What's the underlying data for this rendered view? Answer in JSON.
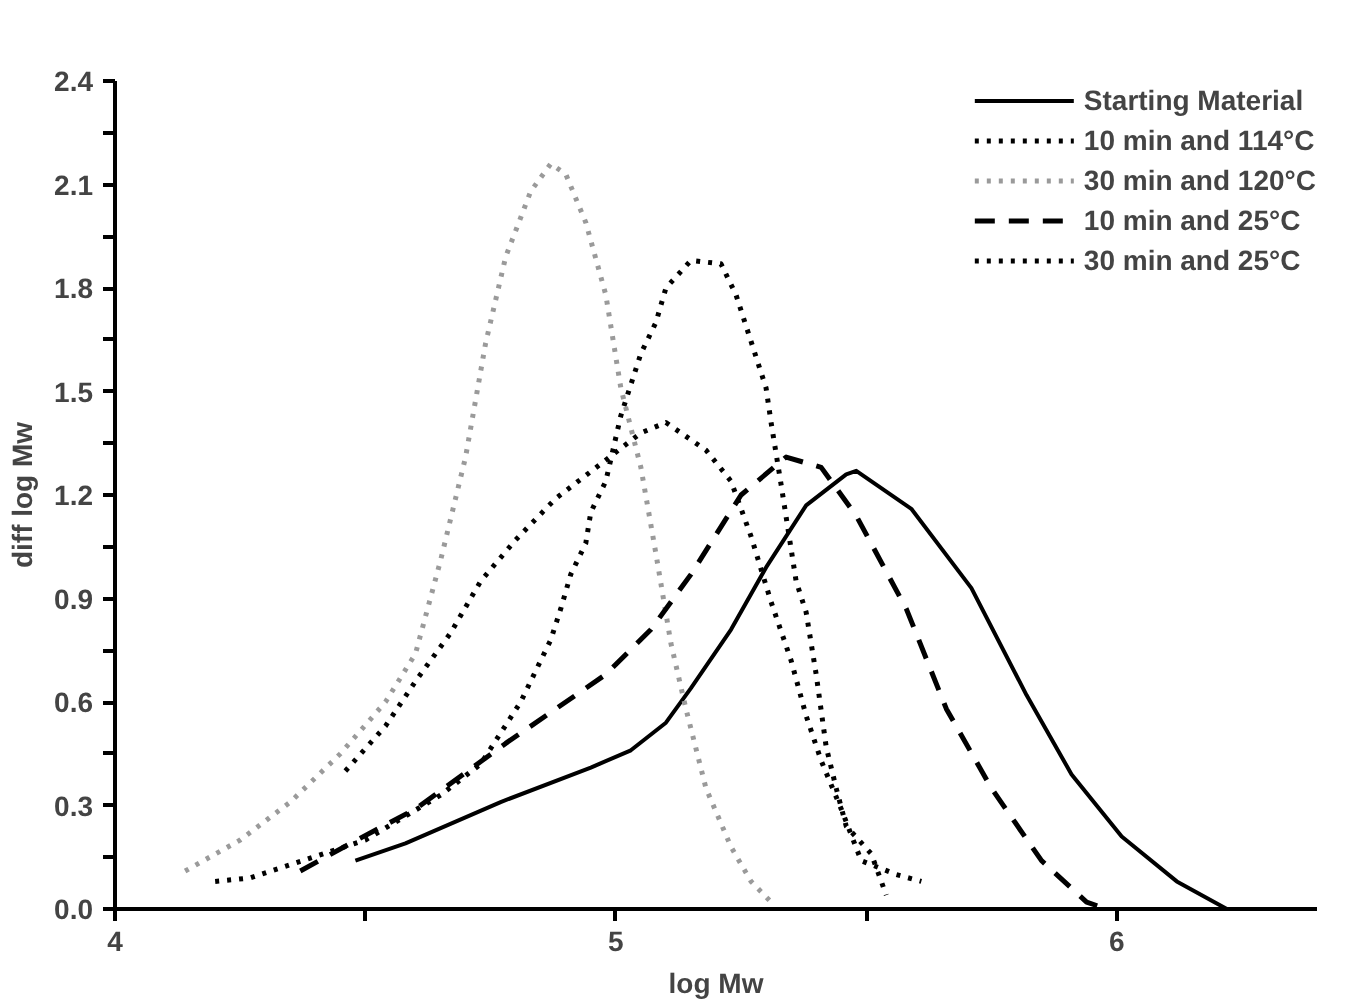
{
  "chart_data": {
    "type": "line",
    "xlabel": "log Mw",
    "ylabel": "diff log Mw",
    "xlim": [
      4,
      6.4
    ],
    "ylim": [
      0,
      2.4
    ],
    "xticks": [
      4,
      {
        "value": 4.5,
        "label": null
      },
      5,
      {
        "value": 5.5,
        "label": null
      },
      6
    ],
    "yticks": [
      {
        "value": 0,
        "label": "0.0"
      },
      {
        "value": 0.15,
        "label": null
      },
      0.3,
      {
        "value": 0.45,
        "label": null
      },
      0.6,
      {
        "value": 0.75,
        "label": null
      },
      0.9,
      {
        "value": 1.05,
        "label": null
      },
      1.2,
      {
        "value": 1.35,
        "label": null
      },
      1.5,
      {
        "value": 1.65,
        "label": null
      },
      1.8,
      {
        "value": 1.95,
        "label": null
      },
      2.1,
      {
        "value": 2.25,
        "label": null
      },
      2.4
    ],
    "grid": false,
    "legend": "top right",
    "series": [
      {
        "name": "Starting Material",
        "color": "#000000",
        "line_style": "solid",
        "x": [
          4.48,
          4.58,
          4.77,
          4.95,
          5.03,
          5.1,
          5.15,
          5.23,
          5.3,
          5.38,
          5.46,
          5.48,
          5.59,
          5.71,
          5.82,
          5.91,
          6.01,
          6.12,
          6.22
        ],
        "values": [
          0.14,
          0.19,
          0.31,
          0.41,
          0.46,
          0.54,
          0.64,
          0.81,
          0.99,
          1.17,
          1.26,
          1.27,
          1.16,
          0.93,
          0.62,
          0.39,
          0.21,
          0.08,
          0.0
        ]
      },
      {
        "name": "10 min and 114°C",
        "color": "#000000",
        "line_style": "dotted",
        "x": [
          4.2,
          4.27,
          4.5,
          4.65,
          4.73,
          4.81,
          4.84,
          4.87,
          4.89,
          4.91,
          4.94,
          4.95,
          4.98,
          5.01,
          5.03,
          5.05,
          5.08,
          5.1,
          5.15,
          5.21,
          5.24,
          5.26,
          5.28,
          5.3,
          5.31,
          5.33,
          5.36,
          5.38,
          5.4,
          5.42,
          5.44,
          5.46,
          5.51,
          5.54
        ],
        "values": [
          0.08,
          0.09,
          0.2,
          0.33,
          0.42,
          0.6,
          0.69,
          0.78,
          0.87,
          0.97,
          1.06,
          1.15,
          1.24,
          1.43,
          1.52,
          1.61,
          1.7,
          1.8,
          1.88,
          1.87,
          1.78,
          1.69,
          1.6,
          1.51,
          1.41,
          1.23,
          0.95,
          0.86,
          0.68,
          0.47,
          0.35,
          0.24,
          0.16,
          0.04
        ]
      },
      {
        "name": "30 min and 120°C",
        "color": "#9a9a9a",
        "line_style": "dotted",
        "x": [
          4.14,
          4.25,
          4.35,
          4.45,
          4.54,
          4.6,
          4.65,
          4.7,
          4.74,
          4.78,
          4.83,
          4.87,
          4.9,
          4.94,
          4.98,
          5.01,
          5.05,
          5.08,
          5.11,
          5.14,
          5.18,
          5.23,
          5.27,
          5.31
        ],
        "values": [
          0.11,
          0.2,
          0.31,
          0.45,
          0.6,
          0.74,
          1.01,
          1.31,
          1.64,
          1.89,
          2.08,
          2.16,
          2.13,
          1.99,
          1.78,
          1.51,
          1.28,
          1.03,
          0.77,
          0.58,
          0.35,
          0.18,
          0.08,
          0.02
        ]
      },
      {
        "name": "10 min and 25°C",
        "color": "#000000",
        "line_style": "dashed",
        "x": [
          4.37,
          4.47,
          4.6,
          4.78,
          4.88,
          4.98,
          5.07,
          5.15,
          5.25,
          5.34,
          5.41,
          5.48,
          5.58,
          5.66,
          5.75,
          5.85,
          5.94,
          5.98
        ],
        "values": [
          0.11,
          0.19,
          0.29,
          0.48,
          0.58,
          0.68,
          0.81,
          0.97,
          1.2,
          1.31,
          1.28,
          1.14,
          0.87,
          0.58,
          0.35,
          0.14,
          0.02,
          0.0
        ]
      },
      {
        "name": "30 min and 25°C",
        "color": "#000000",
        "line_style": "dotted",
        "x": [
          4.46,
          4.54,
          4.6,
          4.67,
          4.73,
          4.8,
          4.88,
          4.97,
          5.05,
          5.1,
          5.18,
          5.23,
          5.27,
          5.31,
          5.35,
          5.38,
          5.41,
          5.45,
          5.49,
          5.56,
          5.61
        ],
        "values": [
          0.4,
          0.53,
          0.66,
          0.8,
          0.95,
          1.07,
          1.19,
          1.29,
          1.38,
          1.41,
          1.33,
          1.24,
          1.08,
          0.89,
          0.72,
          0.56,
          0.43,
          0.29,
          0.14,
          0.1,
          0.08
        ]
      }
    ]
  }
}
